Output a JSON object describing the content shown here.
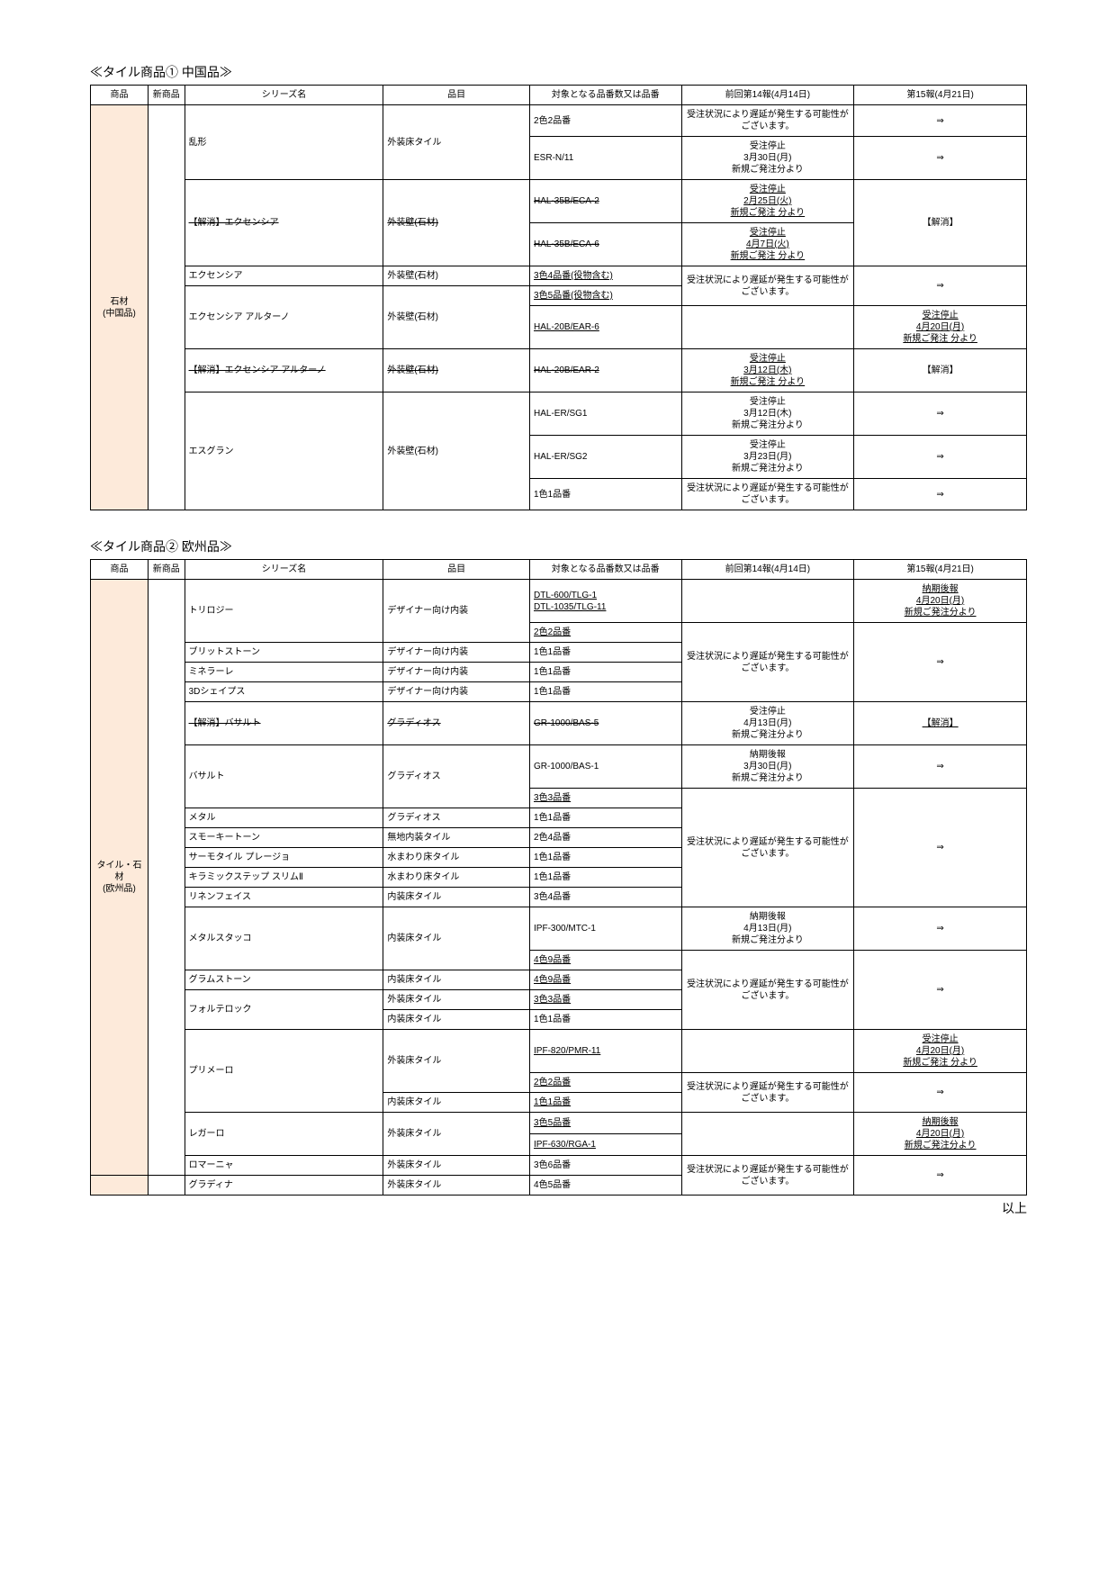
{
  "sections": {
    "s1": {
      "title": "≪タイル商品① 中国品≫"
    },
    "s2": {
      "title": "≪タイル商品② 欧州品≫"
    }
  },
  "headers": {
    "h1": "商品",
    "h2": "新商品",
    "h3": "シリーズ名",
    "h4": "品目",
    "h5": "対象となる品番数又は品番",
    "h6": "前回第14報(4月14日)",
    "h7": "第15報(4月21日)"
  },
  "cat": {
    "c1": "石材\n(中国品)",
    "c2": "タイル・石材\n(欧州品)"
  },
  "series": {
    "ranke": "乱形",
    "ex_cancel": "【解消】エクセンシア",
    "ex": "エクセンシア",
    "ex_art": "エクセンシア アルターノ",
    "ex_art_cancel": "【解消】エクセンシア アルターノ",
    "esg": "エスグラン",
    "trilogy": "トリロジー",
    "brit": "ブリットストーン",
    "mine": "ミネラーレ",
    "shape3d": "3Dシェイプス",
    "bas_cancel": "【解消】バサルト",
    "bas": "バサルト",
    "metal": "メタル",
    "smoky": "スモーキートーン",
    "thermo": "サーモタイル プレージョ",
    "ceram": "キラミックステップ スリムⅡ",
    "linen": "リネンフェイス",
    "mstucco": "メタルスタッコ",
    "gram": "グラムストーン",
    "forte": "フォルテロック",
    "primero": "プリメーロ",
    "regalo": "レガーロ",
    "romagna": "ロマーニャ",
    "gradina": "グラディナ"
  },
  "item": {
    "gaiyuka": "外装床タイル",
    "gaikabe_cancel": "外装壁(石材)",
    "gaikabe": "外装壁(石材)",
    "designer": "デザイナー向け内装",
    "gradios_cancel": "グラディオス",
    "gradios": "グラディオス",
    "muji": "無地内装タイル",
    "mizuyuka": "水まわり床タイル",
    "naiyuka": "内装床タイル"
  },
  "target": {
    "t_2c2": "2色2品番",
    "esr": "ESR-N/11",
    "hal35b2": "HAL-35B/ECA-2",
    "hal35b6": "HAL-35B/ECA-6",
    "c3c4": "3色4品番(役物含む)",
    "c3c5": "3色5品番(役物含む)",
    "hal20b6": "HAL-20B/EAR-6",
    "hal20b2": "HAL-20B/EAR-2",
    "halsg1": "HAL-ER/SG1",
    "halsg2": "HAL-ER/SG2",
    "c1c1": "1色1品番",
    "dtl": "DTL-600/TLG-1\nDTL-1035/TLG-11",
    "gr5": "GR-1000/BAS-5",
    "gr1": "GR-1000/BAS-1",
    "c3c3": "3色3品番",
    "c2c4": "2色4品番",
    "c3c4b": "3色4品番",
    "ipf300": "IPF-300/MTC-1",
    "c4c9": "4色9品番",
    "ipf820": "IPF-820/PMR-11",
    "c3c5b": "3色5品番",
    "ipf630": "IPF-630/RGA-1",
    "c3c6": "3色6品番",
    "c4c5": "4色5品番"
  },
  "status": {
    "delay_possible": "受注状況により遅延が発生する可能性がございます。",
    "delay_possible2": "受注状況により遅延が発生する可能性がございます。",
    "stop_0330": "受注停止\n3月30日(月)\n新規ご発注分より",
    "stop_0225": "受注停止\n2月25日(火)\n新規ご発注 分より",
    "stop_0407": "受注停止\n4月7日(火)\n新規ご発注 分より",
    "stop_0420": "受注停止\n4月20日(月)\n新規ご発注 分より",
    "stop_0312": "受注停止\n3月12日(木)\n新規ご発注 分より",
    "stop_0312b": "受注停止\n3月12日(木)\n新規ご発注分より",
    "stop_0323": "受注停止\n3月23日(月)\n新規ご発注分より",
    "stop_0413": "受注停止\n4月13日(月)\n新規ご発注分より",
    "late_0420": "納期後報\n4月20日(月)\n新規ご発注分より",
    "late_0330": "納期後報\n3月30日(月)\n新規ご発注分より",
    "late_0413": "納期後報\n4月13日(月)\n新規ご発注分より",
    "cancel": "【解消】",
    "arrow": "⇒"
  },
  "footer": "以上"
}
